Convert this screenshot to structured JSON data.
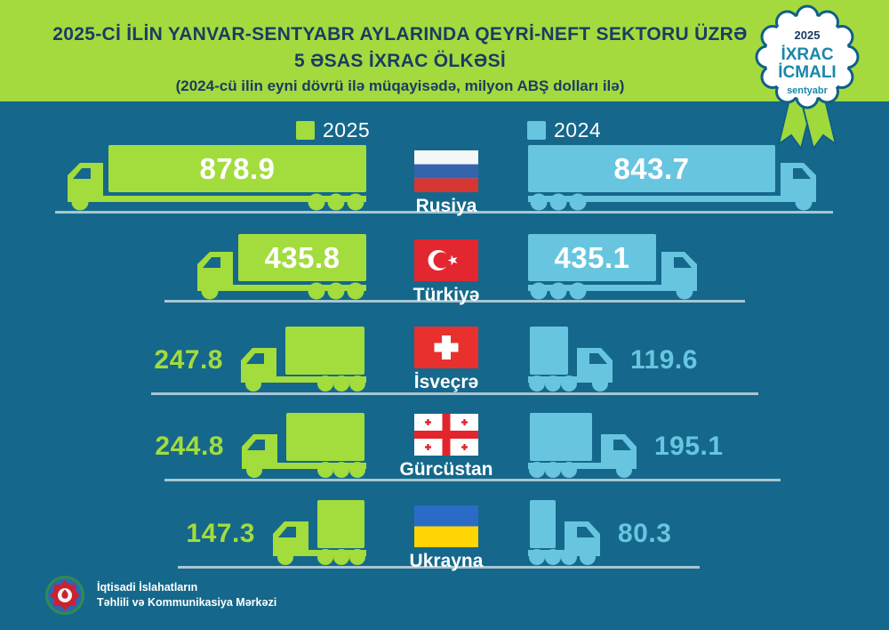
{
  "title": {
    "line1": "2025-Cİ İLİN YANVAR-SENTYABR AYLARINDA QEYRİ-NEFT SEKTORU ÜZRƏ",
    "line2": "5 ƏSAS İXRAC ÖLKƏSİ",
    "line3": "(2024-cü ilin eyni dövrü ilə müqayisədə, milyon ABŞ dolları ilə)"
  },
  "badge": {
    "year": "2025",
    "line1": "İXRAC",
    "line2": "İCMALI",
    "month": "sentyabr"
  },
  "legend": {
    "items": [
      {
        "label": "2025"
      },
      {
        "label": "2024"
      }
    ]
  },
  "footer": {
    "org_line1": "İqtisadi İslahatların",
    "org_line2": "Təhlili və Kommunikasiya Mərkəzi"
  },
  "chart_data": {
    "type": "bar",
    "title": "2025-ci ilin yanvar-sentyabr aylarında qeyri-neft sektoru üzrə 5 əsas ixrac ölkəsi",
    "subtitle": "2024-cü ilin eyni dövrü ilə müqayisədə, milyon ABŞ dolları ilə",
    "unit": "milyon ABŞ dolları",
    "orientation": "horizontal pictogram (truck length ∝ value)",
    "legend_position": "top",
    "categories": [
      "Rusiya",
      "Türkiyə",
      "İsveçrə",
      "Gürcüstan",
      "Ukrayna"
    ],
    "series": [
      {
        "name": "2025",
        "color": "#a2dc3d",
        "values": [
          878.9,
          435.8,
          247.8,
          244.8,
          147.3
        ]
      },
      {
        "name": "2024",
        "color": "#68c5e0",
        "values": [
          843.7,
          435.1,
          119.6,
          195.1,
          80.3
        ]
      }
    ]
  },
  "colors": {
    "background": "#15688b",
    "header_band": "#a4da3e",
    "title_text": "#1b3c63",
    "green_2025": "#a2dc3d",
    "blue_2024": "#68c5e0",
    "ground_line": "#a7c6d2",
    "badge_teal": "#1a86aa",
    "white": "#ffffff"
  }
}
